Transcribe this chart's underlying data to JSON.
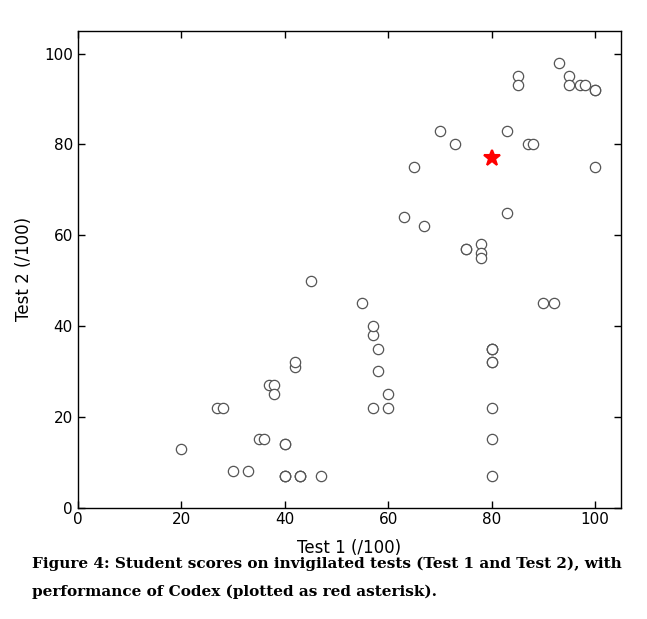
{
  "scatter_x": [
    20,
    27,
    28,
    30,
    33,
    35,
    36,
    37,
    38,
    38,
    40,
    40,
    40,
    40,
    40,
    42,
    42,
    43,
    43,
    43,
    45,
    47,
    55,
    57,
    57,
    57,
    58,
    58,
    60,
    60,
    63,
    65,
    67,
    70,
    73,
    75,
    75,
    78,
    78,
    78,
    80,
    80,
    80,
    80,
    80,
    80,
    80,
    80,
    83,
    83,
    85,
    85,
    87,
    88,
    90,
    92,
    93,
    95,
    95,
    97,
    98,
    100,
    100,
    100
  ],
  "scatter_y": [
    13,
    22,
    22,
    8,
    8,
    15,
    15,
    27,
    27,
    25,
    14,
    14,
    7,
    7,
    7,
    31,
    32,
    7,
    7,
    7,
    50,
    7,
    45,
    22,
    38,
    40,
    30,
    35,
    25,
    22,
    64,
    75,
    62,
    83,
    80,
    57,
    57,
    58,
    56,
    55,
    35,
    35,
    35,
    32,
    32,
    22,
    15,
    7,
    83,
    65,
    95,
    93,
    80,
    80,
    45,
    45,
    98,
    95,
    93,
    93,
    93,
    92,
    92,
    75
  ],
  "codex_x": 80,
  "codex_y": 77,
  "xlabel": "Test 1 (/100)",
  "ylabel": "Test 2 (/100)",
  "xlim": [
    0,
    105
  ],
  "ylim": [
    0,
    105
  ],
  "xticks": [
    0,
    20,
    40,
    60,
    80,
    100
  ],
  "yticks": [
    0,
    20,
    40,
    60,
    80,
    100
  ],
  "caption_line1": "Figure 4: Student scores on invigilated tests (Test 1 and Test 2), with",
  "caption_line2": "performance of Codex (plotted as red asterisk).",
  "marker_facecolor": "white",
  "marker_edge_color": "#555555",
  "codex_color": "red",
  "bg_color": "white"
}
